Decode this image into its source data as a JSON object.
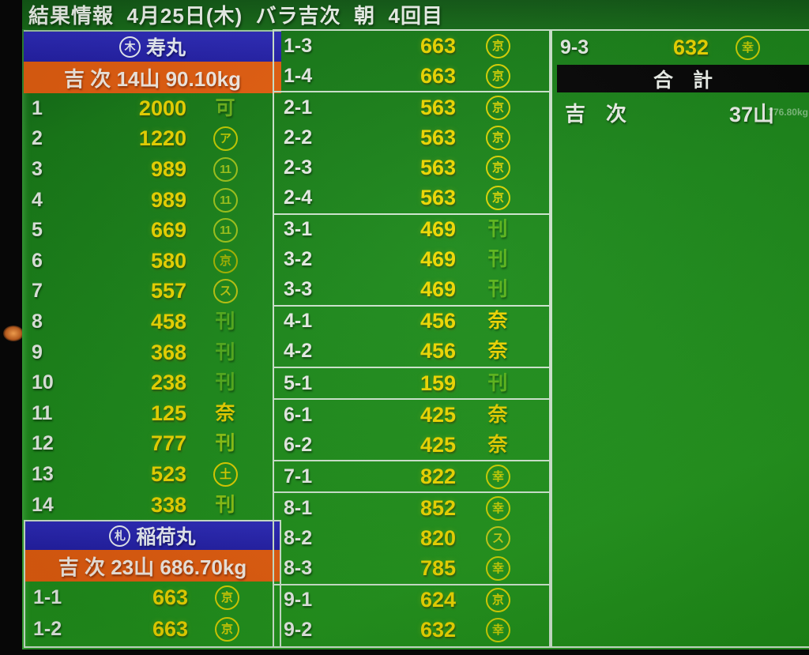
{
  "header": {
    "title": "結果情報  4月25日(木)  バラ吉次  朝  4回目"
  },
  "left": {
    "vessel1": {
      "circle_mark": "木",
      "name": "寿丸",
      "summary": "吉 次 14山 90.10kg"
    },
    "rows1": [
      {
        "no": "1",
        "price": "2000",
        "mark": "可",
        "circled": false,
        "color": "#6fb31c"
      },
      {
        "no": "2",
        "price": "1220",
        "mark": "ア",
        "circled": true,
        "color": "#c2cc00"
      },
      {
        "no": "3",
        "price": "989",
        "mark": "11",
        "circled": true,
        "color": "#9fc41a"
      },
      {
        "no": "4",
        "price": "989",
        "mark": "11",
        "circled": true,
        "color": "#9fc41a"
      },
      {
        "no": "5",
        "price": "669",
        "mark": "11",
        "circled": true,
        "color": "#9fc41a"
      },
      {
        "no": "6",
        "price": "580",
        "mark": "京",
        "circled": true,
        "color": "#a6b400"
      },
      {
        "no": "7",
        "price": "557",
        "mark": "ス",
        "circled": true,
        "color": "#b9c410"
      },
      {
        "no": "8",
        "price": "458",
        "mark": "刊",
        "circled": false,
        "color": "#55ad1c"
      },
      {
        "no": "9",
        "price": "368",
        "mark": "刊",
        "circled": false,
        "color": "#55ad1c"
      },
      {
        "no": "10",
        "price": "238",
        "mark": "刊",
        "circled": false,
        "color": "#55ad1c"
      },
      {
        "no": "11",
        "price": "125",
        "mark": "奈",
        "circled": false,
        "color": "#e8d000"
      },
      {
        "no": "12",
        "price": "777",
        "mark": "刊",
        "circled": false,
        "color": "#8cc414"
      },
      {
        "no": "13",
        "price": "523",
        "mark": "土",
        "circled": true,
        "color": "#ddd000"
      },
      {
        "no": "14",
        "price": "338",
        "mark": "刊",
        "circled": false,
        "color": "#8cc414"
      }
    ],
    "vessel2": {
      "circle_mark": "札",
      "name": "稲荷丸",
      "summary": "吉 次 23山 686.70kg"
    },
    "rows2": [
      {
        "no": "1-1",
        "price": "663",
        "mark": "京",
        "circled": true,
        "color": "#d9d304"
      },
      {
        "no": "1-2",
        "price": "663",
        "mark": "京",
        "circled": true,
        "color": "#d9d304"
      }
    ]
  },
  "middle": {
    "groups": [
      {
        "rows": [
          {
            "no": "1-3",
            "price": "663",
            "mark": "京",
            "circled": true,
            "color": "#d9d304"
          },
          {
            "no": "1-4",
            "price": "663",
            "mark": "京",
            "circled": true,
            "color": "#d9d304"
          }
        ]
      },
      {
        "rows": [
          {
            "no": "2-1",
            "price": "563",
            "mark": "京",
            "circled": true,
            "color": "#d9d304"
          },
          {
            "no": "2-2",
            "price": "563",
            "mark": "京",
            "circled": true,
            "color": "#d9d304"
          },
          {
            "no": "2-3",
            "price": "563",
            "mark": "京",
            "circled": true,
            "color": "#d9d304"
          },
          {
            "no": "2-4",
            "price": "563",
            "mark": "京",
            "circled": true,
            "color": "#d9d304"
          }
        ]
      },
      {
        "rows": [
          {
            "no": "3-1",
            "price": "469",
            "mark": "刊",
            "circled": false,
            "color": "#5bb41a"
          },
          {
            "no": "3-2",
            "price": "469",
            "mark": "刊",
            "circled": false,
            "color": "#5bb41a"
          },
          {
            "no": "3-3",
            "price": "469",
            "mark": "刊",
            "circled": false,
            "color": "#5bb41a"
          }
        ]
      },
      {
        "rows": [
          {
            "no": "4-1",
            "price": "456",
            "mark": "奈",
            "circled": false,
            "color": "#edd400"
          },
          {
            "no": "4-2",
            "price": "456",
            "mark": "奈",
            "circled": false,
            "color": "#edd400"
          }
        ]
      },
      {
        "rows": [
          {
            "no": "5-1",
            "price": "159",
            "mark": "刊",
            "circled": false,
            "color": "#5bb41a"
          }
        ]
      },
      {
        "rows": [
          {
            "no": "6-1",
            "price": "425",
            "mark": "奈",
            "circled": false,
            "color": "#e4cf00"
          },
          {
            "no": "6-2",
            "price": "425",
            "mark": "奈",
            "circled": false,
            "color": "#e4cf00"
          }
        ]
      },
      {
        "rows": [
          {
            "no": "7-1",
            "price": "822",
            "mark": "幸",
            "circled": true,
            "color": "#ccd104"
          }
        ]
      },
      {
        "rows": [
          {
            "no": "8-1",
            "price": "852",
            "mark": "幸",
            "circled": true,
            "color": "#ccd104"
          },
          {
            "no": "8-2",
            "price": "820",
            "mark": "ス",
            "circled": true,
            "color": "#c4cd18"
          },
          {
            "no": "8-3",
            "price": "785",
            "mark": "幸",
            "circled": true,
            "color": "#ccd104"
          }
        ]
      },
      {
        "rows": [
          {
            "no": "9-1",
            "price": "624",
            "mark": "京",
            "circled": true,
            "color": "#d9d304"
          },
          {
            "no": "9-2",
            "price": "632",
            "mark": "幸",
            "circled": true,
            "color": "#ccd104"
          }
        ]
      }
    ]
  },
  "right": {
    "row": {
      "no": "9-3",
      "price": "632",
      "mark": "幸",
      "circled": true,
      "color": "#ccd104"
    },
    "total_label": "合　計",
    "total": {
      "name": "吉　次",
      "count": "37山",
      "weight": "776.80kg"
    }
  },
  "colors": {
    "screen_green": "#1d8a1b",
    "header_green": "#156518",
    "vessel_blue": "#2a28b4",
    "summary_orange": "#e65f10",
    "price_yellow": "#eed800",
    "total_black": "#060606"
  }
}
